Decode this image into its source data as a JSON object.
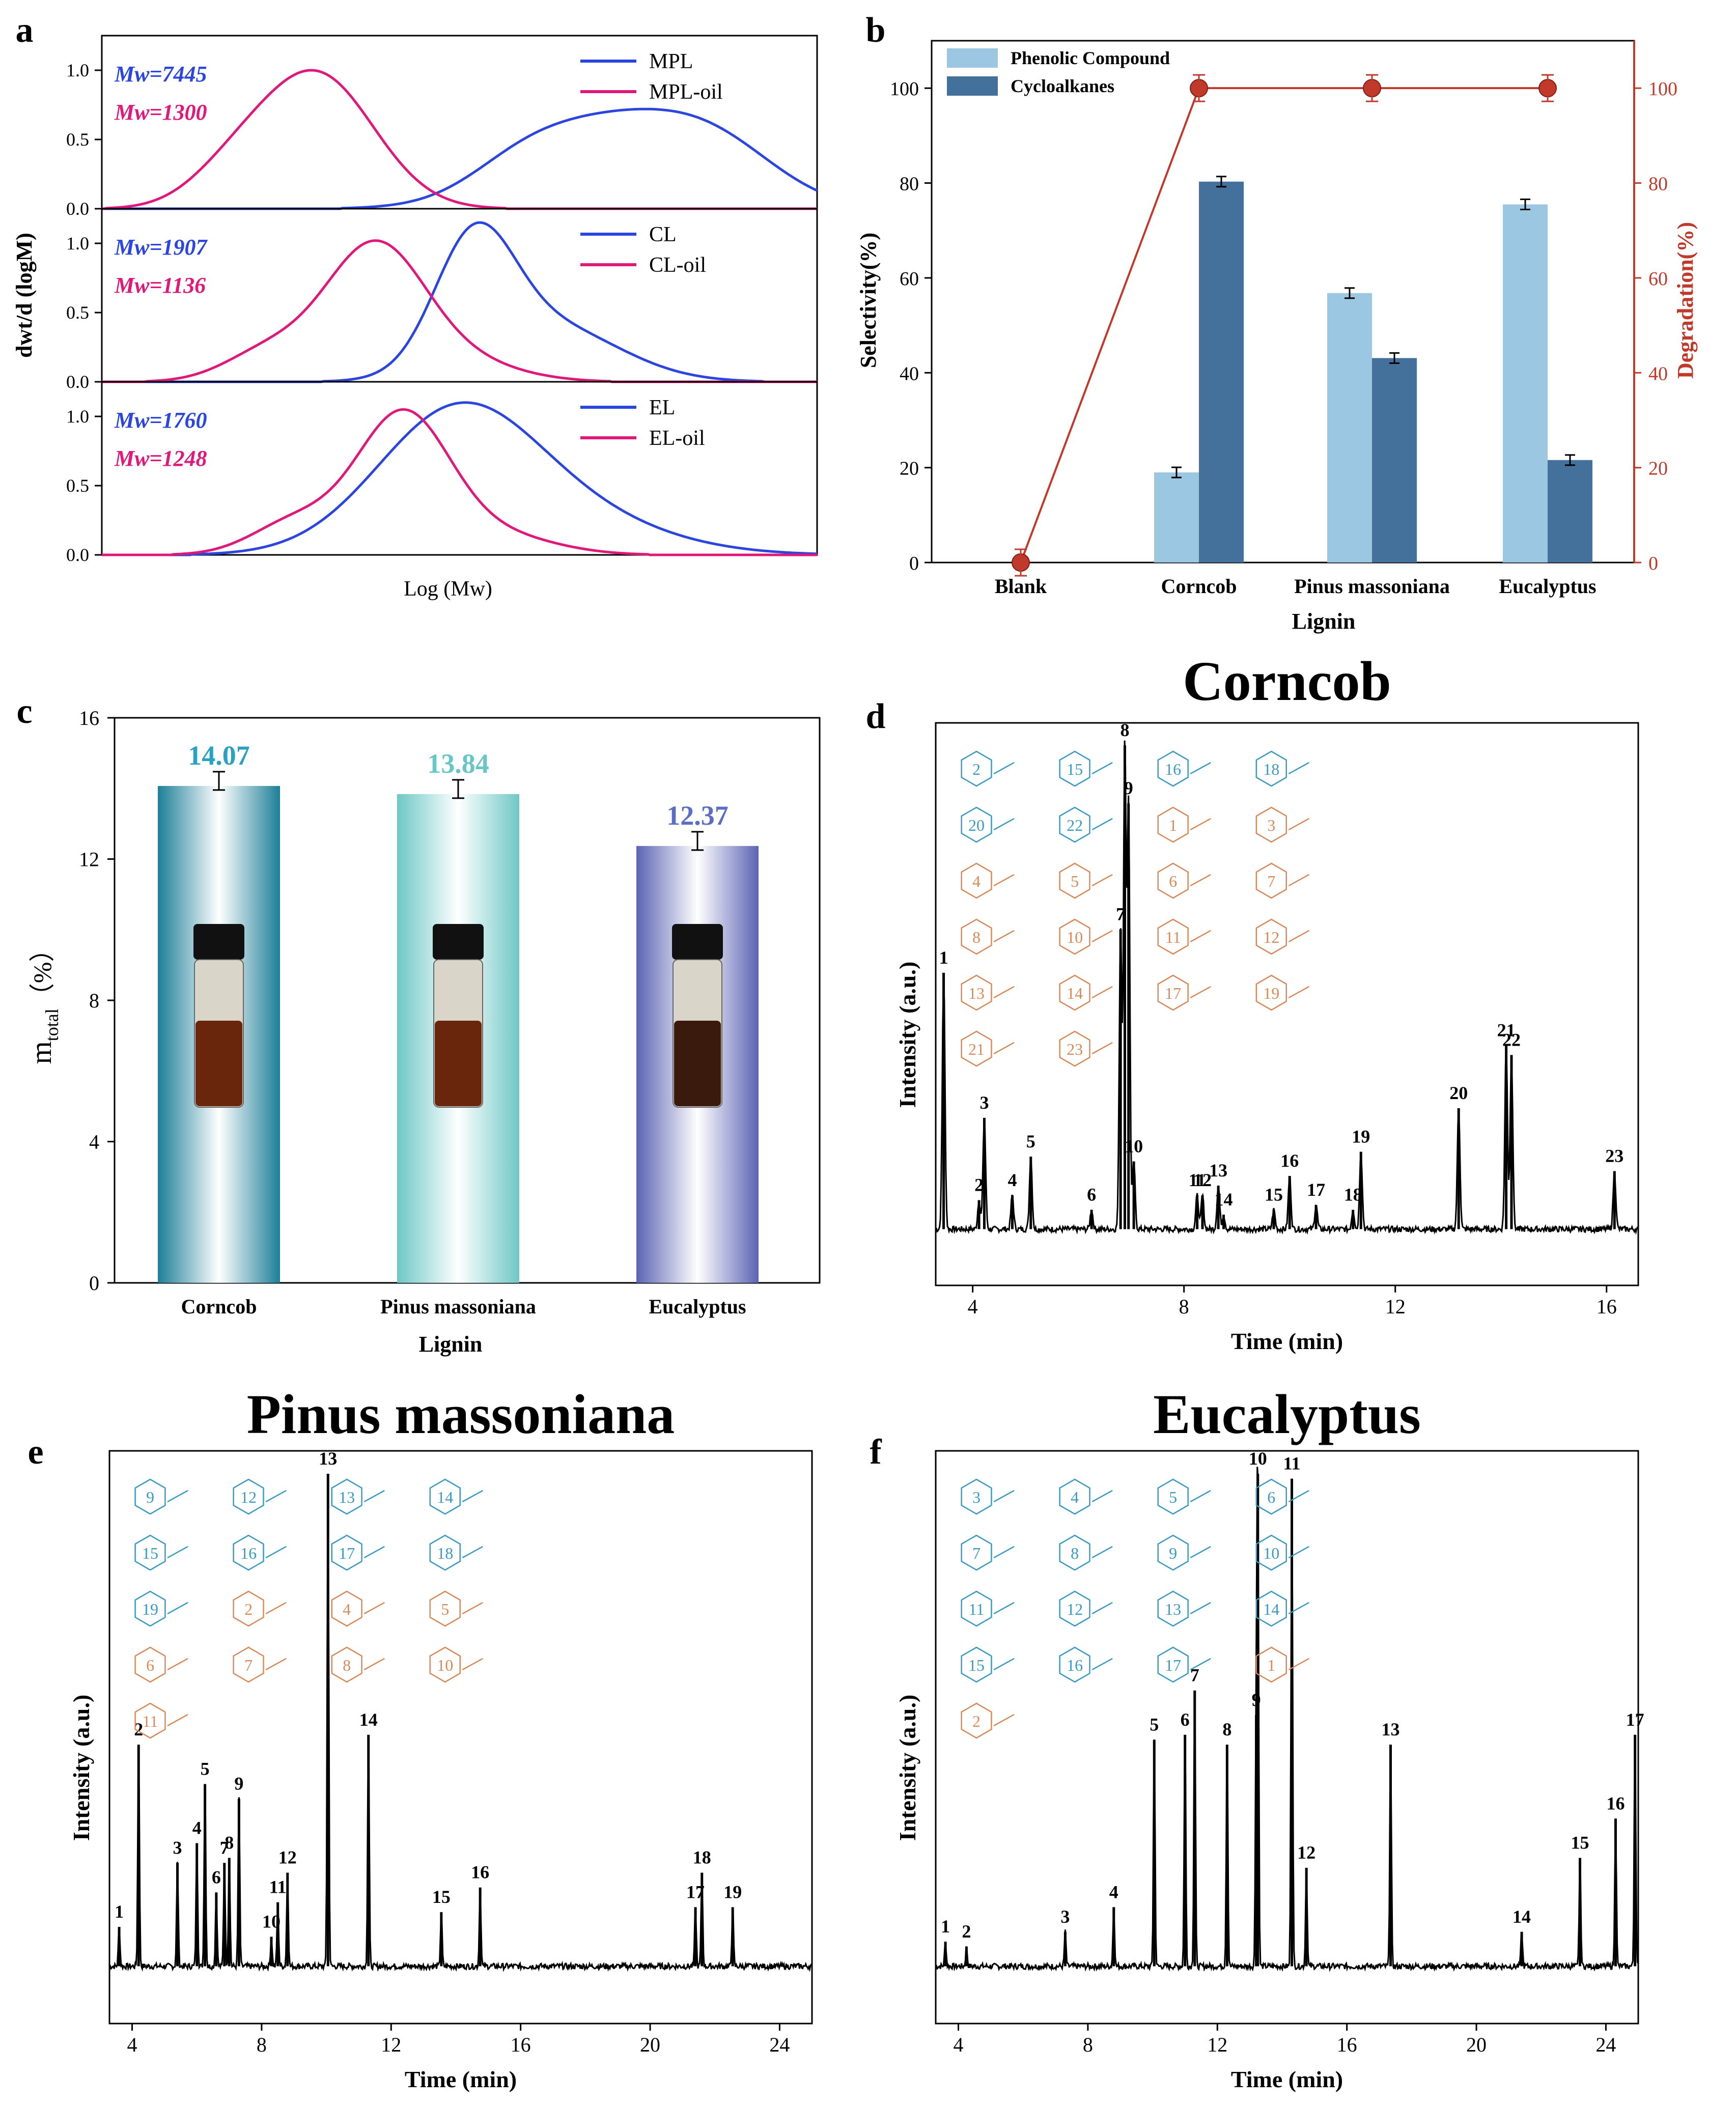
{
  "colors": {
    "blue": "#2b45e0",
    "pink": "#e0187a",
    "light_blue": "#9cc7e3",
    "dark_blue": "#44709c",
    "red": "#c0392b",
    "teal1": "#1d7f98",
    "teal2": "#6ec8c6",
    "purple": "#5b64b3",
    "orange": "#d98a5a",
    "struct_blue": "#3b9ac4",
    "title_teal1": "#2aa0c2",
    "title_teal2": "#68c6c6",
    "title_purple": "#5b6ec4"
  },
  "panel_labels": {
    "a": "a",
    "b": "b",
    "c": "c",
    "d": "d",
    "e": "e",
    "f": "f"
  },
  "chart_data": [
    {
      "id": "a",
      "type": "line",
      "xlabel": "Log (Mw)",
      "ylabel": "dwt/d (logM)",
      "subplots": [
        {
          "ylim": [
            0,
            1.25
          ],
          "ticks": [
            "1.0",
            "0.5",
            "0.0"
          ],
          "mw_labels": [
            "Mw=7445",
            "Mw=1300"
          ],
          "series": [
            {
              "name": "MPL",
              "color": "blue",
              "peak": 0.72
            },
            {
              "name": "MPL-oil",
              "color": "pink",
              "peak": 1.0
            }
          ]
        },
        {
          "ylim": [
            0,
            1.25
          ],
          "ticks": [
            "1.0",
            "0.5",
            "0.0"
          ],
          "mw_labels": [
            "Mw=1907",
            "Mw=1136"
          ],
          "series": [
            {
              "name": "CL",
              "color": "blue",
              "peak": 1.15
            },
            {
              "name": "CL-oil",
              "color": "pink",
              "peak": 1.02
            }
          ]
        },
        {
          "ylim": [
            0,
            1.25
          ],
          "ticks": [
            "1.0",
            "0.5",
            "0.0"
          ],
          "mw_labels": [
            "Mw=1760",
            "Mw=1248"
          ],
          "series": [
            {
              "name": "EL",
              "color": "blue",
              "peak": 1.1
            },
            {
              "name": "EL-oil",
              "color": "pink",
              "peak": 1.05
            }
          ]
        }
      ]
    },
    {
      "id": "b",
      "type": "bar+line",
      "categories": [
        "Blank",
        "Corncob",
        "Pinus massoniana",
        "Eucalyptus"
      ],
      "series": [
        {
          "name": "Phenolic Compound",
          "values": [
            0,
            19,
            56.8,
            75.5
          ]
        },
        {
          "name": "Cycloalkanes",
          "values": [
            0,
            80.3,
            43.1,
            21.6
          ]
        }
      ],
      "degradation": {
        "name": "Degradation(%)",
        "values": [
          0,
          100,
          100,
          100
        ]
      },
      "xlabel": "Lignin",
      "ylabel": "Selectivity(%)",
      "y2label": "Degradation(%)",
      "ylim": [
        0,
        110
      ],
      "yticks": [
        "0",
        "20",
        "40",
        "60",
        "80",
        "100"
      ]
    },
    {
      "id": "c",
      "type": "bar",
      "categories": [
        "Corncob",
        "Pinus massoniana",
        "Eucalyptus"
      ],
      "values": [
        14.07,
        13.84,
        12.37
      ],
      "value_labels": [
        "14.07",
        "13.84",
        "12.37"
      ],
      "xlabel": "Lignin",
      "ylabel": "m",
      "ylabel_sub": "total",
      "ylabel_unit": "（%）",
      "ylim": [
        0,
        16
      ],
      "yticks": [
        "0",
        "4",
        "8",
        "12",
        "16"
      ]
    },
    {
      "id": "d",
      "type": "chromatogram",
      "title": "Corncob",
      "xlabel": "Time (min)",
      "ylabel": "Intensity (a.u.)",
      "xlim": [
        3.3,
        16.6
      ],
      "xticks": [
        "4",
        "8",
        "12",
        "16"
      ],
      "peaks": [
        {
          "t": 3.45,
          "h": 0.53,
          "label": "1"
        },
        {
          "t": 4.12,
          "h": 0.06,
          "label": "2"
        },
        {
          "t": 4.22,
          "h": 0.23,
          "label": "3"
        },
        {
          "t": 4.75,
          "h": 0.07,
          "label": "4"
        },
        {
          "t": 5.1,
          "h": 0.15,
          "label": "5"
        },
        {
          "t": 6.25,
          "h": 0.04,
          "label": "6"
        },
        {
          "t": 6.8,
          "h": 0.62,
          "label": "7"
        },
        {
          "t": 6.88,
          "h": 1.0,
          "label": "8"
        },
        {
          "t": 6.95,
          "h": 0.88,
          "label": "9"
        },
        {
          "t": 7.05,
          "h": 0.14,
          "label": "10"
        },
        {
          "t": 8.25,
          "h": 0.07,
          "label": "11"
        },
        {
          "t": 8.35,
          "h": 0.07,
          "label": "12"
        },
        {
          "t": 8.65,
          "h": 0.09,
          "label": "13"
        },
        {
          "t": 8.75,
          "h": 0.03,
          "label": "14"
        },
        {
          "t": 9.7,
          "h": 0.04,
          "label": "15"
        },
        {
          "t": 10.0,
          "h": 0.11,
          "label": "16"
        },
        {
          "t": 10.5,
          "h": 0.05,
          "label": "17"
        },
        {
          "t": 11.2,
          "h": 0.04,
          "label": "18"
        },
        {
          "t": 11.35,
          "h": 0.16,
          "label": "19"
        },
        {
          "t": 13.2,
          "h": 0.25,
          "label": "20"
        },
        {
          "t": 14.1,
          "h": 0.38,
          "label": "21"
        },
        {
          "t": 14.2,
          "h": 0.36,
          "label": "22"
        },
        {
          "t": 16.15,
          "h": 0.12,
          "label": "23"
        }
      ],
      "structures": {
        "blue": [
          "2",
          "15",
          "16",
          "18",
          "20",
          "22"
        ],
        "orange": [
          "1",
          "3",
          "4",
          "5",
          "6",
          "7",
          "8",
          "10",
          "11",
          "12",
          "13",
          "14",
          "17",
          "19",
          "21",
          "23"
        ]
      }
    },
    {
      "id": "e",
      "type": "chromatogram",
      "title": "Pinus massoniana",
      "xlabel": "Time (min)",
      "ylabel": "Intensity (a.u.)",
      "xlim": [
        3.3,
        25
      ],
      "xticks": [
        "4",
        "8",
        "12",
        "16",
        "20",
        "24"
      ],
      "peaks": [
        {
          "t": 3.6,
          "h": 0.08,
          "label": "1"
        },
        {
          "t": 4.2,
          "h": 0.45,
          "label": "2"
        },
        {
          "t": 5.4,
          "h": 0.21,
          "label": "3"
        },
        {
          "t": 6.0,
          "h": 0.25,
          "label": "4"
        },
        {
          "t": 6.25,
          "h": 0.37,
          "label": "5"
        },
        {
          "t": 6.6,
          "h": 0.15,
          "label": "6"
        },
        {
          "t": 6.85,
          "h": 0.21,
          "label": "7"
        },
        {
          "t": 7.0,
          "h": 0.22,
          "label": "8"
        },
        {
          "t": 7.3,
          "h": 0.34,
          "label": "9"
        },
        {
          "t": 8.3,
          "h": 0.06,
          "label": "10"
        },
        {
          "t": 8.5,
          "h": 0.13,
          "label": "11"
        },
        {
          "t": 8.8,
          "h": 0.19,
          "label": "12"
        },
        {
          "t": 10.05,
          "h": 1.0,
          "label": "13"
        },
        {
          "t": 11.3,
          "h": 0.47,
          "label": "14"
        },
        {
          "t": 13.55,
          "h": 0.11,
          "label": "15"
        },
        {
          "t": 14.75,
          "h": 0.16,
          "label": "16"
        },
        {
          "t": 21.4,
          "h": 0.12,
          "label": "17"
        },
        {
          "t": 21.6,
          "h": 0.19,
          "label": "18"
        },
        {
          "t": 22.55,
          "h": 0.12,
          "label": "19"
        }
      ],
      "structures": {
        "blue": [
          "9",
          "12",
          "13",
          "14",
          "15",
          "16",
          "17",
          "18",
          "19"
        ],
        "orange": [
          "2",
          "4",
          "5",
          "6",
          "7",
          "8",
          "10",
          "11"
        ]
      }
    },
    {
      "id": "f",
      "type": "chromatogram",
      "title": "Eucalyptus",
      "xlabel": "Time (min)",
      "ylabel": "Intensity (a.u.)",
      "xlim": [
        3.3,
        25
      ],
      "xticks": [
        "4",
        "8",
        "12",
        "16",
        "20",
        "24"
      ],
      "peaks": [
        {
          "t": 3.6,
          "h": 0.05,
          "label": "1"
        },
        {
          "t": 4.25,
          "h": 0.04,
          "label": "2"
        },
        {
          "t": 7.3,
          "h": 0.07,
          "label": "3"
        },
        {
          "t": 8.8,
          "h": 0.12,
          "label": "4"
        },
        {
          "t": 10.05,
          "h": 0.46,
          "label": "5"
        },
        {
          "t": 11.0,
          "h": 0.47,
          "label": "6"
        },
        {
          "t": 11.3,
          "h": 0.56,
          "label": "7"
        },
        {
          "t": 12.3,
          "h": 0.45,
          "label": "8"
        },
        {
          "t": 13.2,
          "h": 0.51,
          "label": "9"
        },
        {
          "t": 13.25,
          "h": 1.0,
          "label": "10"
        },
        {
          "t": 14.3,
          "h": 0.99,
          "label": "11"
        },
        {
          "t": 14.75,
          "h": 0.2,
          "label": "12"
        },
        {
          "t": 17.35,
          "h": 0.45,
          "label": "13"
        },
        {
          "t": 21.4,
          "h": 0.07,
          "label": "14"
        },
        {
          "t": 23.2,
          "h": 0.22,
          "label": "15"
        },
        {
          "t": 24.3,
          "h": 0.3,
          "label": "16"
        },
        {
          "t": 24.9,
          "h": 0.47,
          "label": "17"
        }
      ],
      "structures": {
        "blue": [
          "3",
          "4",
          "5",
          "6",
          "7",
          "8",
          "9",
          "10",
          "11",
          "12",
          "13",
          "14",
          "15",
          "16",
          "17"
        ],
        "orange": [
          "1",
          "2"
        ]
      }
    }
  ]
}
